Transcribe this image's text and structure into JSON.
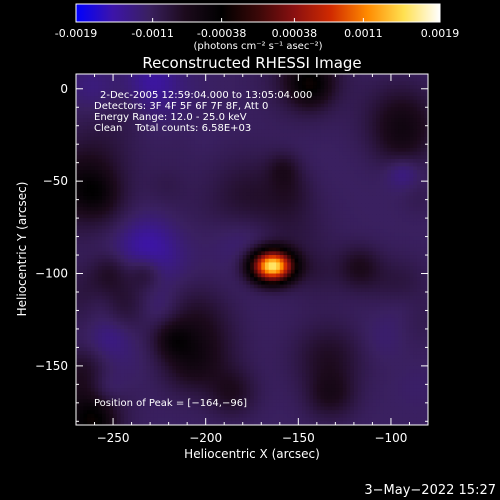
{
  "chart_data": {
    "type": "heatmap",
    "title": "Reconstructed RHESSI Image",
    "colorbar": {
      "ticks": [
        "-0.0019",
        "-0.0011",
        "-0.00038",
        "0.00038",
        "0.0011",
        "0.0019"
      ],
      "tick_values": [
        -0.0019,
        -0.0011,
        -0.00038,
        0.00038,
        0.0011,
        0.0019
      ],
      "range": [
        -0.0019,
        0.0019
      ],
      "unit_label": "(photons cm⁻² s⁻¹ asec⁻²)",
      "stops": [
        "#0000ff",
        "#3c14aa",
        "#3a2060",
        "#1c0a1c",
        "#000000",
        "#3a0808",
        "#8a1010",
        "#d02a00",
        "#ff8a00",
        "#ffe050",
        "#ffffff"
      ]
    },
    "xlabel": "Heliocentric X (arcsec)",
    "ylabel": "Heliocentric Y (arcsec)",
    "xlim": [
      -270,
      -80
    ],
    "ylim": [
      -182,
      8
    ],
    "xticks": [
      -250,
      -200,
      -150,
      -100
    ],
    "yticks": [
      0,
      -50,
      -100,
      -150
    ],
    "xtick_labels": [
      "−250",
      "−200",
      "−150",
      "−100"
    ],
    "ytick_labels": [
      "0",
      "−50",
      "−100",
      "−150"
    ],
    "peak": [
      -164,
      -96
    ],
    "annotations": {
      "time_range": "2-Dec-2005 12:59:04.000 to 13:05:04.000",
      "detectors": "Detectors: 3F 4F 5F 6F 7F 8F, Att 0",
      "energy": "Energy Range: 12.0 - 25.0 keV",
      "clean": "Clean    Total counts: 6.58E+03",
      "peak_text": "Position of Peak = [−164,−96]"
    }
  },
  "datestamp": "3−May−2022 15:27"
}
